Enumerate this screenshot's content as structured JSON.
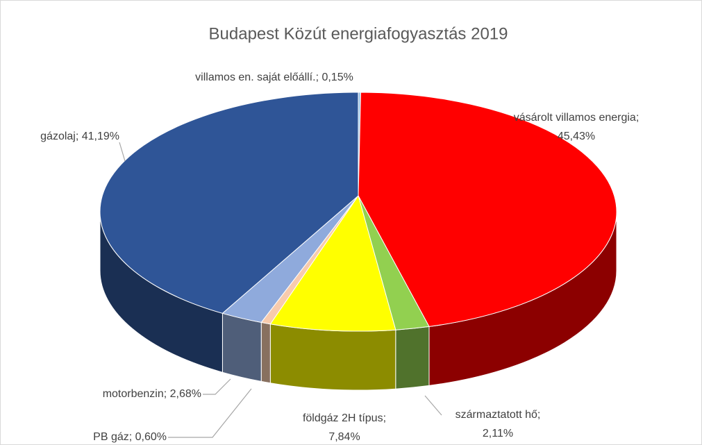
{
  "chart_data": {
    "type": "pie3d",
    "title": "Budapest Közút energiafogyasztás 2019",
    "values": [
      0.15,
      45.43,
      2.11,
      7.84,
      0.6,
      2.68,
      41.19
    ],
    "value_labels": [
      [
        "villamos en. saját előállí.; 0,15%"
      ],
      [
        "vásárolt villamos energia;",
        "45,43%"
      ],
      [
        "származtatott hő;",
        "2,11%"
      ],
      [
        "földgáz 2H típus;",
        "7,84%"
      ],
      [
        "PB gáz; 0,60%"
      ],
      [
        "motorbenzin; 2,68%"
      ],
      [
        "gázolaj; 41,19%"
      ]
    ],
    "colors": [
      "#9dc3e6",
      "#ff0000",
      "#92d050",
      "#ffff00",
      "#f8cbad",
      "#8faadc",
      "#2f5597"
    ]
  }
}
